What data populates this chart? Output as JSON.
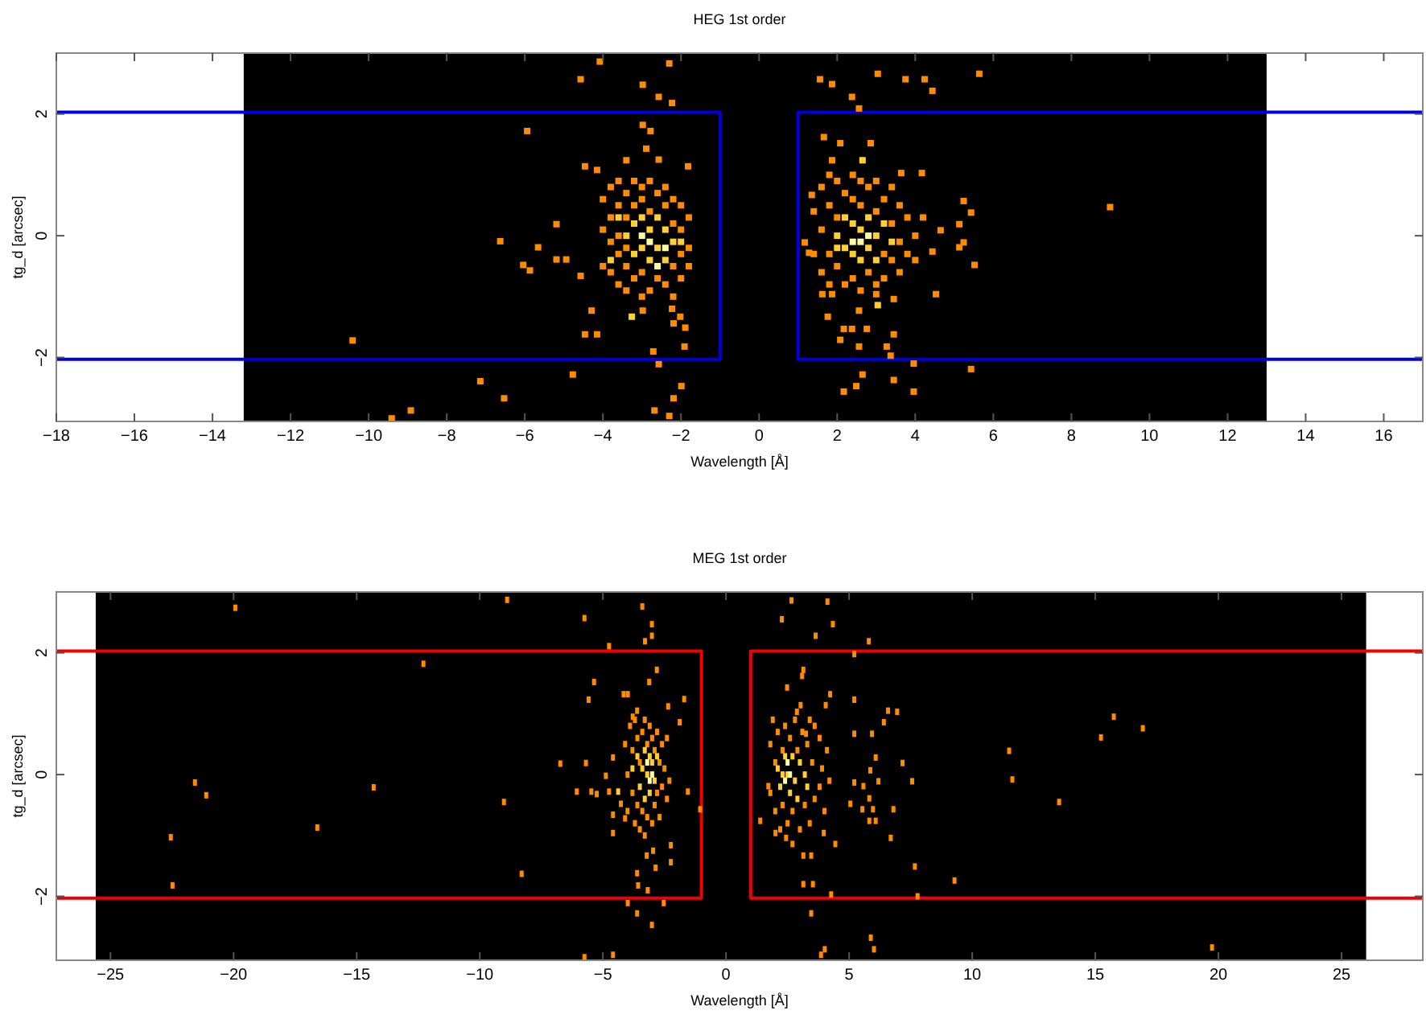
{
  "chart_data": [
    {
      "type": "scatter",
      "title": "HEG 1st order",
      "xlabel": "Wavelength [Å]",
      "ylabel": "tg_d [arcsec]",
      "xlim": [
        -18,
        17
      ],
      "ylim": [
        -3.05,
        3
      ],
      "xticks": [
        -18,
        -16,
        -14,
        -12,
        -10,
        -8,
        -6,
        -4,
        -2,
        0,
        2,
        4,
        6,
        8,
        10,
        12,
        14,
        16
      ],
      "yticks": [
        -2,
        0,
        2
      ],
      "grid": false,
      "marker": "square",
      "bands": [
        {
          "axis": "x",
          "from": -13.2,
          "to": 13.0,
          "color": "#000000"
        }
      ],
      "series": [
        {
          "type": "line",
          "marker": "none",
          "color": "#0000dd",
          "x": [
            -18,
            -1,
            -1,
            -18
          ],
          "values": [
            2.03,
            2.03,
            -2.03,
            -2.03
          ]
        },
        {
          "type": "line",
          "marker": "none",
          "color": "#0000dd",
          "x": [
            17,
            1,
            1,
            17
          ],
          "values": [
            2.03,
            2.03,
            -2.03,
            -2.03
          ]
        },
        {
          "color": "#ff8c00",
          "x": [
            -4.08,
            -2.3,
            -4.57,
            -2.98,
            -2.57,
            -2.23,
            -5.94,
            -2.78,
            -2.98,
            -2.89,
            -2.57,
            -3.4,
            -4.46,
            -4.15,
            -1.82,
            -6.63,
            -5.66,
            -5.19,
            -6.04,
            -5.87,
            -5.19,
            -4.94,
            -4.57,
            -4.29,
            -4.46,
            -4.15,
            -2.98,
            -2.23,
            -2.02,
            -2.19,
            -1.89,
            -1.91,
            -2.71,
            -2.57,
            -4.77,
            -1.99,
            -6.53,
            -2.19,
            -2.68,
            -2.3,
            -10.41,
            -7.14,
            -8.92,
            -9.41
          ],
          "values": [
            2.86,
            2.83,
            2.57,
            2.48,
            2.28,
            2.18,
            1.72,
            1.72,
            1.82,
            1.43,
            1.25,
            1.24,
            1.14,
            1.08,
            1.14,
            -0.09,
            -0.19,
            0.19,
            -0.48,
            -0.57,
            -0.39,
            -0.39,
            -0.66,
            -1.23,
            -1.62,
            -1.62,
            -1.23,
            -1.2,
            -1.33,
            -1.44,
            -1.51,
            -1.82,
            -1.9,
            -2.11,
            -2.28,
            -2.47,
            -2.67,
            -2.67,
            -2.87,
            -2.96,
            -1.72,
            -2.39,
            -2.87,
            -3.0
          ]
        },
        {
          "color": "#ff8c00",
          "x": [
            -4.0,
            -4.0,
            -4.0,
            -3.8,
            -3.8,
            -3.8,
            -3.8,
            -3.6,
            -3.6,
            -3.6,
            -3.6,
            -3.6,
            -3.4,
            -3.4,
            -3.4,
            -3.4,
            -3.4,
            -3.2,
            -3.2,
            -3.2,
            -3.0,
            -3.0,
            -3.0,
            -3.0,
            -2.8,
            -2.8,
            -2.8,
            -2.6,
            -2.6,
            -2.4,
            -2.4,
            -2.4,
            -2.2,
            -2.2,
            -2.2,
            -2.2,
            -2.0,
            -2.0,
            -2.0,
            -2.0,
            -1.8,
            -1.8,
            -1.8
          ],
          "values": [
            0.6,
            0.1,
            -0.5,
            0.8,
            0.3,
            -0.1,
            -0.6,
            0.9,
            0.5,
            0.0,
            -0.3,
            -0.8,
            0.7,
            0.3,
            -0.2,
            -0.5,
            -0.9,
            0.9,
            0.5,
            -0.7,
            0.8,
            0.6,
            -0.6,
            -1.0,
            0.9,
            0.4,
            -0.9,
            0.7,
            -0.7,
            0.8,
            0.5,
            -0.8,
            0.6,
            0.2,
            -0.5,
            -1.0,
            0.5,
            0.1,
            -0.3,
            -0.7,
            0.3,
            -0.2,
            -0.5
          ]
        },
        {
          "color": "#ff8c00",
          "x": [
            3.04,
            1.56,
            1.87,
            3.75,
            4.24,
            5.64,
            4.44,
            2.38,
            2.56,
            1.66,
            2.08,
            2.86,
            1.87,
            4.17,
            3.64,
            1.35,
            5.24,
            5.43,
            5.13,
            5.24,
            5.13,
            4.65,
            4.44,
            5.52,
            1.17,
            1.28,
            1.62,
            1.87,
            3.0,
            3.45,
            4.53,
            2.56,
            1.76,
            2.17,
            2.38,
            2.76,
            3.45,
            2.08,
            2.56,
            3.27,
            3.37,
            3.96,
            5.43,
            2.65,
            3.45,
            2.49,
            2.17,
            3.96,
            8.99
          ],
          "values": [
            2.66,
            2.57,
            2.49,
            2.57,
            2.57,
            2.66,
            2.38,
            2.28,
            2.09,
            1.62,
            1.52,
            1.52,
            1.24,
            1.03,
            1.03,
            0.67,
            0.57,
            0.38,
            0.19,
            -0.11,
            -0.19,
            0.09,
            -0.26,
            -0.48,
            -0.11,
            -0.28,
            -0.96,
            -0.96,
            -0.96,
            -1.04,
            -0.96,
            -1.23,
            -1.33,
            -1.53,
            -1.53,
            -1.53,
            -1.62,
            -1.71,
            -1.82,
            -1.82,
            -1.97,
            -2.1,
            -2.19,
            -2.28,
            -2.37,
            -2.47,
            -2.56,
            -2.56,
            0.47
          ]
        },
        {
          "color": "#ff8c00",
          "x": [
            1.4,
            1.4,
            1.6,
            1.6,
            1.6,
            1.8,
            1.8,
            1.8,
            1.8,
            2.0,
            2.0,
            2.0,
            2.2,
            2.2,
            2.4,
            2.4,
            2.4,
            2.6,
            2.6,
            2.6,
            2.8,
            2.8,
            3.0,
            3.0,
            3.0,
            3.2,
            3.2,
            3.2,
            3.4,
            3.4,
            3.4,
            3.6,
            3.6,
            3.6,
            3.8,
            3.8,
            4.0,
            4.0,
            4.2
          ],
          "values": [
            0.4,
            -0.3,
            0.8,
            0.1,
            -0.6,
            1.0,
            0.5,
            -0.3,
            -0.8,
            0.9,
            0.3,
            -0.5,
            0.7,
            -0.8,
            1.0,
            0.6,
            -0.7,
            0.9,
            0.5,
            -0.9,
            0.8,
            -0.6,
            0.9,
            0.4,
            -0.8,
            0.6,
            -0.3,
            -0.7,
            0.8,
            0.2,
            -0.4,
            0.5,
            -0.1,
            -0.6,
            0.3,
            -0.3,
            0.0,
            -0.4,
            0.3
          ]
        },
        {
          "color": "#ffd030",
          "x": [
            -3.6,
            -3.4,
            -3.2,
            -3.2,
            -3.0,
            -3.0,
            -2.8,
            -2.8,
            -2.6,
            -2.6,
            -2.4,
            -2.4,
            -2.2,
            -3.8,
            -2.0,
            -3.26,
            2.0,
            2.2,
            2.2,
            2.4,
            2.4,
            2.6,
            2.6,
            2.8,
            2.8,
            3.0,
            3.0,
            3.2,
            2.0,
            3.4,
            2.65,
            3.04
          ],
          "values": [
            0.3,
            0.0,
            0.2,
            -0.3,
            0.3,
            -0.2,
            0.1,
            -0.4,
            0.3,
            -0.2,
            0.1,
            -0.4,
            -0.1,
            -0.4,
            -0.1,
            -1.33,
            0.0,
            0.3,
            -0.2,
            0.2,
            -0.3,
            0.1,
            -0.4,
            0.3,
            -0.2,
            0.0,
            -0.4,
            0.2,
            -0.2,
            -0.1,
            1.24,
            -1.14
          ]
        },
        {
          "color": "#ffffa0",
          "x": [
            -2.8,
            -3.0,
            -2.4,
            -2.6,
            2.6,
            2.8,
            2.4
          ],
          "values": [
            -0.1,
            0.0,
            -0.2,
            -0.5,
            -0.1,
            0.0,
            -0.1
          ]
        }
      ]
    },
    {
      "type": "scatter",
      "title": "MEG 1st order",
      "xlabel": "Wavelength [Å]",
      "ylabel": "tg_d [arcsec]",
      "xlim": [
        -27.2,
        28.3
      ],
      "ylim": [
        -3.05,
        3
      ],
      "xticks": [
        -25,
        -20,
        -15,
        -10,
        -5,
        0,
        5,
        10,
        15,
        20,
        25
      ],
      "yticks": [
        -2,
        0,
        2
      ],
      "grid": false,
      "marker": "square",
      "bands": [
        {
          "axis": "x",
          "from": -25.6,
          "to": 26.0,
          "color": "#000000"
        }
      ],
      "series": [
        {
          "type": "line",
          "marker": "none",
          "color": "#ee0000",
          "x": [
            -27.2,
            -1,
            -1,
            -27.2
          ],
          "values": [
            2.03,
            2.03,
            -2.03,
            -2.03
          ]
        },
        {
          "type": "line",
          "marker": "none",
          "color": "#ee0000",
          "x": [
            28.3,
            1,
            1,
            28.3
          ],
          "values": [
            2.03,
            2.03,
            -2.03,
            -2.03
          ]
        },
        {
          "color": "#ff8c00",
          "x": [
            -3.4,
            -5.75,
            -3.01,
            -3.01,
            -3.29,
            -4.75,
            -2.81,
            -5.36,
            -5.58,
            -4.16,
            -3.99,
            -3.12,
            -1.7,
            -2.35,
            -3.79,
            -3.61,
            -1.88,
            -5.69,
            -4.88,
            -4.59,
            -6.06,
            -5.47,
            -5.25,
            -4.75,
            -4.27,
            -4.59,
            -4.59,
            -4.1,
            -1.55,
            -1.05,
            -2.24,
            -2.96,
            -3.22,
            -2.86,
            -2.24,
            -3.61,
            -3.57,
            -3.18,
            -3.99,
            -2.53,
            -3.61,
            -3.01,
            -5.75,
            -4.59
          ],
          "values": [
            2.76,
            2.57,
            2.47,
            2.28,
            2.19,
            2.11,
            1.72,
            1.52,
            1.23,
            1.32,
            1.32,
            1.52,
            1.24,
            1.12,
            0.95,
            1.05,
            0.86,
            0.19,
            -0.02,
            0.28,
            -0.28,
            -0.28,
            -0.32,
            -0.28,
            -0.48,
            -0.66,
            -0.96,
            -0.72,
            -0.28,
            -0.57,
            -1.16,
            -1.25,
            -1.33,
            -1.53,
            -1.44,
            -1.62,
            -1.82,
            -1.9,
            -2.11,
            -2.11,
            -2.28,
            -2.47,
            -3.0,
            -2.96
          ]
        },
        {
          "color": "#ff8c00",
          "x": [
            -19.93,
            -12.29,
            -22.55,
            -21.57,
            -21.11,
            -22.48,
            -16.6,
            -14.31,
            -9.02,
            -8.3,
            -8.89,
            -6.73,
            11.5,
            11.63,
            13.53,
            15.23,
            15.75,
            16.93,
            9.28,
            7.78,
            19.74,
            4.12,
            5.88
          ],
          "values": [
            2.74,
            1.82,
            -1.03,
            -0.13,
            -0.34,
            -1.82,
            -0.87,
            -0.21,
            -0.45,
            -1.63,
            2.87,
            0.18,
            0.39,
            -0.08,
            -0.45,
            0.61,
            0.95,
            0.76,
            -1.74,
            -2.0,
            -2.84,
            2.84,
            -2.68
          ]
        },
        {
          "color": "#ff8c00",
          "x": [
            2.66,
            2.27,
            4.34,
            3.64,
            5.8,
            5.21,
            3.14,
            3.09,
            2.48,
            4.23,
            5.21,
            3.03,
            4.05,
            2.88,
            6.58,
            6.95,
            6.41,
            5.21,
            5.93,
            3.25,
            7.17,
            6.08,
            5.86,
            6.19,
            7.56,
            5.58,
            5.21,
            5.82,
            6.8,
            5.97,
            5.54,
            5.82,
            6.08,
            5.05,
            1.72,
            1.39,
            2.01,
            2.44,
            2.7,
            3.14,
            3.46,
            3.97,
            4.44,
            6.69,
            7.67,
            3.14,
            3.53,
            4.27,
            3.46,
            4.01,
            3.86,
            6.01
          ],
          "values": [
            2.86,
            2.55,
            2.47,
            2.28,
            2.19,
            1.98,
            1.72,
            1.62,
            1.43,
            1.32,
            1.23,
            1.14,
            1.14,
            1.03,
            1.05,
            1.03,
            0.86,
            0.67,
            0.67,
            0.67,
            0.19,
            0.28,
            0.07,
            -0.11,
            -0.11,
            -0.19,
            -0.13,
            -0.39,
            -0.57,
            -0.57,
            -0.57,
            -0.76,
            -0.76,
            -0.48,
            -0.19,
            -0.76,
            -0.96,
            -1.04,
            -1.14,
            -1.33,
            -1.33,
            -0.96,
            -1.14,
            -1.04,
            -1.51,
            -1.8,
            -1.8,
            -1.97,
            -2.28,
            -2.87,
            -2.96,
            -2.87
          ]
        },
        {
          "color": "#ff8c00",
          "x": [
            -4.1,
            -4.0,
            -4.0,
            -3.9,
            -3.8,
            -3.8,
            -3.7,
            -3.7,
            -3.6,
            -3.6,
            -3.5,
            -3.5,
            -3.4,
            -3.4,
            -3.3,
            -3.3,
            -3.2,
            -3.2,
            -3.1,
            -3.0,
            -3.0,
            -2.9,
            -2.9,
            -2.8,
            -2.8,
            -2.7,
            -2.7,
            -2.6,
            -2.6,
            -2.5,
            -2.4,
            -2.4,
            -2.3
          ],
          "values": [
            0.5,
            0.0,
            -0.6,
            0.8,
            0.4,
            -0.3,
            0.9,
            -0.8,
            0.6,
            -0.5,
            0.2,
            -0.9,
            0.7,
            -0.6,
            0.9,
            -1.0,
            0.5,
            -0.7,
            0.8,
            0.6,
            -0.8,
            0.4,
            -0.5,
            0.7,
            -0.3,
            0.2,
            -0.7,
            0.5,
            -0.2,
            0.1,
            0.6,
            -0.4,
            -0.1
          ]
        },
        {
          "color": "#ff8c00",
          "x": [
            1.8,
            1.8,
            1.9,
            2.0,
            2.0,
            2.1,
            2.2,
            2.3,
            2.3,
            2.4,
            2.5,
            2.6,
            2.7,
            2.8,
            2.9,
            3.0,
            3.1,
            3.2,
            3.3,
            3.4,
            3.5,
            3.6,
            3.6,
            3.8,
            3.8,
            3.9,
            4.0,
            4.1,
            4.2,
            3.4
          ],
          "values": [
            0.5,
            -0.3,
            0.9,
            0.2,
            -0.6,
            0.7,
            -0.9,
            0.4,
            -0.5,
            0.8,
            -0.8,
            0.6,
            -0.6,
            0.9,
            0.4,
            -0.9,
            0.7,
            -0.5,
            0.5,
            -0.8,
            0.2,
            0.8,
            -0.4,
            0.6,
            -0.2,
            0.1,
            -0.6,
            0.4,
            -0.1,
            0.9
          ]
        },
        {
          "color": "#ffd030",
          "x": [
            -3.8,
            -3.6,
            -3.5,
            -3.4,
            -3.3,
            -3.3,
            -3.2,
            -3.1,
            -3.0,
            -2.9,
            -2.8,
            -3.1,
            -4.38,
            2.1,
            2.2,
            2.4,
            2.5,
            2.6,
            2.7,
            2.8,
            2.9,
            3.0,
            3.2,
            3.3,
            2.3
          ],
          "values": [
            0.1,
            0.3,
            -0.2,
            0.1,
            0.4,
            -0.4,
            0.0,
            -0.3,
            0.2,
            -0.1,
            0.3,
            0.3,
            -0.28,
            0.1,
            -0.2,
            0.3,
            0.0,
            -0.3,
            0.3,
            -0.1,
            -0.4,
            0.2,
            0.0,
            -0.2,
            0.0
          ]
        },
        {
          "color": "#ffffa0",
          "x": [
            -3.2,
            -3.1,
            -3.0,
            2.4,
            2.6,
            2.5
          ],
          "values": [
            0.2,
            -0.1,
            0.0,
            -0.1,
            0.0,
            0.2
          ]
        }
      ]
    }
  ]
}
